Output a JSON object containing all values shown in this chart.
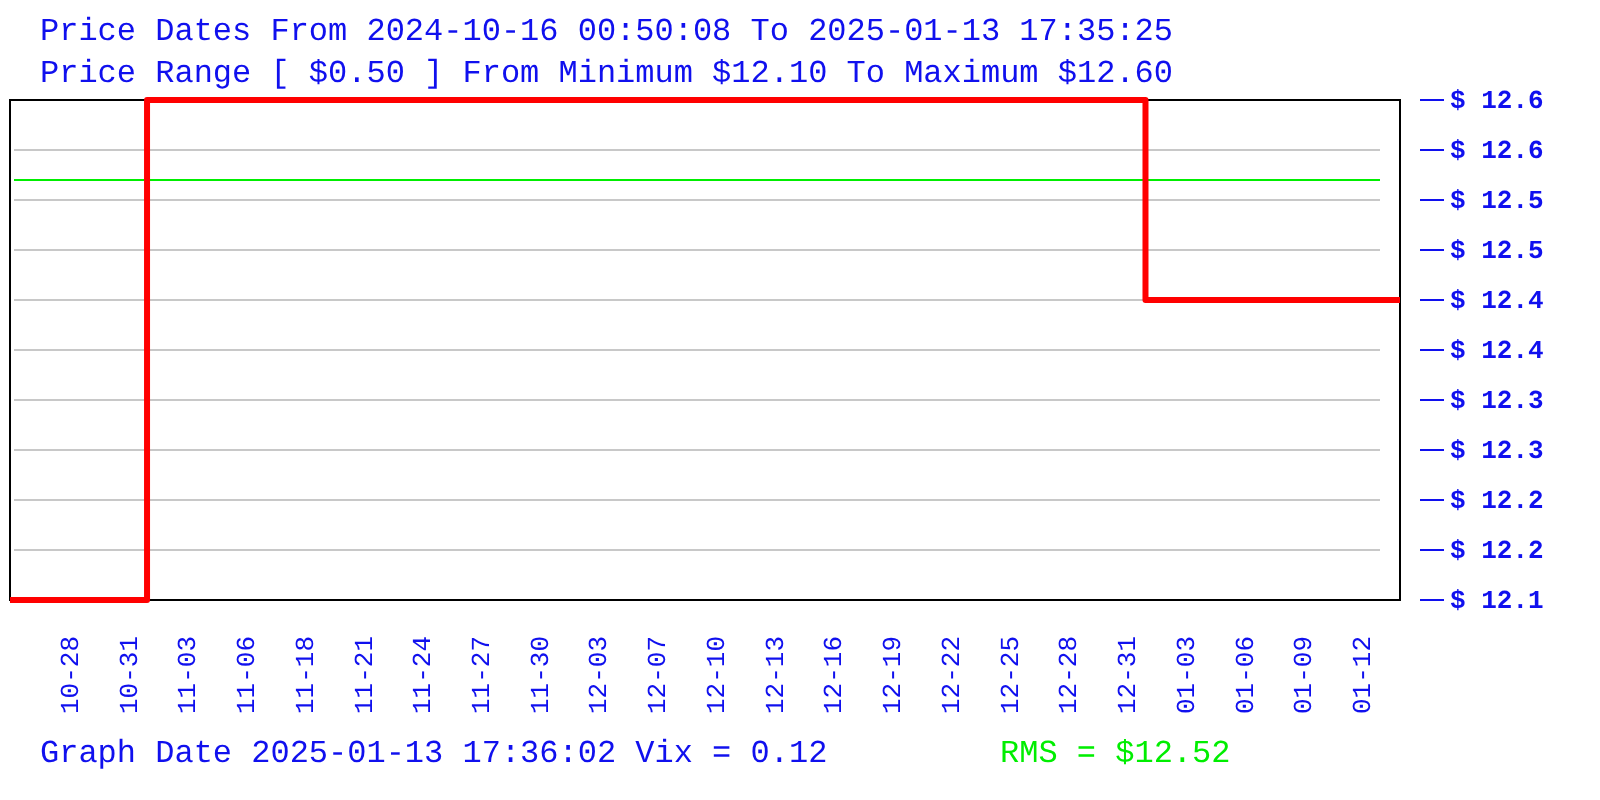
{
  "chart_data": {
    "type": "step",
    "title": "Price Dates From 2024-10-16 00:50:08 To 2025-01-13 17:35:25",
    "subtitle": "Price Range [ $0.50 ] From Minimum $12.10 To Maximum $12.60",
    "categories": [
      null,
      null,
      null,
      "10-28",
      null,
      null,
      "10-31",
      null,
      null,
      "11-03",
      null,
      null,
      "11-06",
      null,
      null,
      "11-18",
      null,
      null,
      "11-21",
      null,
      null,
      "11-24",
      null,
      null,
      "11-27",
      null,
      null,
      "11-30",
      null,
      null,
      "12-03",
      null,
      null,
      "12-07",
      null,
      null,
      "12-10",
      null,
      null,
      "12-13",
      null,
      null,
      "12-16",
      null,
      null,
      "12-19",
      null,
      null,
      "12-22",
      null,
      null,
      "12-25",
      null,
      null,
      "12-28",
      null,
      null,
      "12-31",
      null,
      null,
      "01-03",
      null,
      null,
      "01-06",
      null,
      null,
      "01-09",
      null,
      null,
      "01-12",
      null,
      null
    ],
    "series": [
      {
        "color": "#ff0000",
        "values": [
          12.1,
          12.1,
          12.1,
          12.1,
          12.1,
          12.1,
          12.1,
          12.6,
          12.6,
          12.6,
          12.6,
          12.6,
          12.6,
          12.6,
          12.6,
          12.6,
          12.6,
          12.6,
          12.6,
          12.6,
          12.6,
          12.6,
          12.6,
          12.6,
          12.6,
          12.6,
          12.6,
          12.6,
          12.6,
          12.6,
          12.6,
          12.6,
          12.6,
          12.6,
          12.6,
          12.6,
          12.6,
          12.6,
          12.6,
          12.6,
          12.6,
          12.6,
          12.6,
          12.6,
          12.6,
          12.6,
          12.6,
          12.6,
          12.6,
          12.6,
          12.6,
          12.6,
          12.6,
          12.6,
          12.6,
          12.6,
          12.6,
          12.6,
          12.4,
          12.4,
          12.4,
          12.4,
          12.4,
          12.4,
          12.4,
          12.4,
          12.4,
          12.4,
          12.4,
          12.4,
          12.4,
          12.4
        ]
      }
    ],
    "ylim": [
      12.1,
      12.6
    ],
    "yticks": [
      {
        "value": 12.1,
        "label": "$ 12.1"
      },
      {
        "value": 12.15,
        "label": "$ 12.2"
      },
      {
        "value": 12.2,
        "label": "$ 12.2"
      },
      {
        "value": 12.25,
        "label": "$ 12.3"
      },
      {
        "value": 12.3,
        "label": "$ 12.3"
      },
      {
        "value": 12.35,
        "label": "$ 12.4"
      },
      {
        "value": 12.4,
        "label": "$ 12.4"
      },
      {
        "value": 12.45,
        "label": "$ 12.5"
      },
      {
        "value": 12.5,
        "label": "$ 12.5"
      },
      {
        "value": 12.55,
        "label": "$ 12.6"
      },
      {
        "value": 12.6,
        "label": "$ 12.6"
      }
    ],
    "grid": "y",
    "ref_lines": [
      {
        "axis": "y",
        "value": 12.52,
        "color": "#00ee00"
      }
    ],
    "annotations": [
      "Graph Date 2025-01-13 17:36:02 Vix = 0.12",
      "RMS = $12.52"
    ]
  }
}
